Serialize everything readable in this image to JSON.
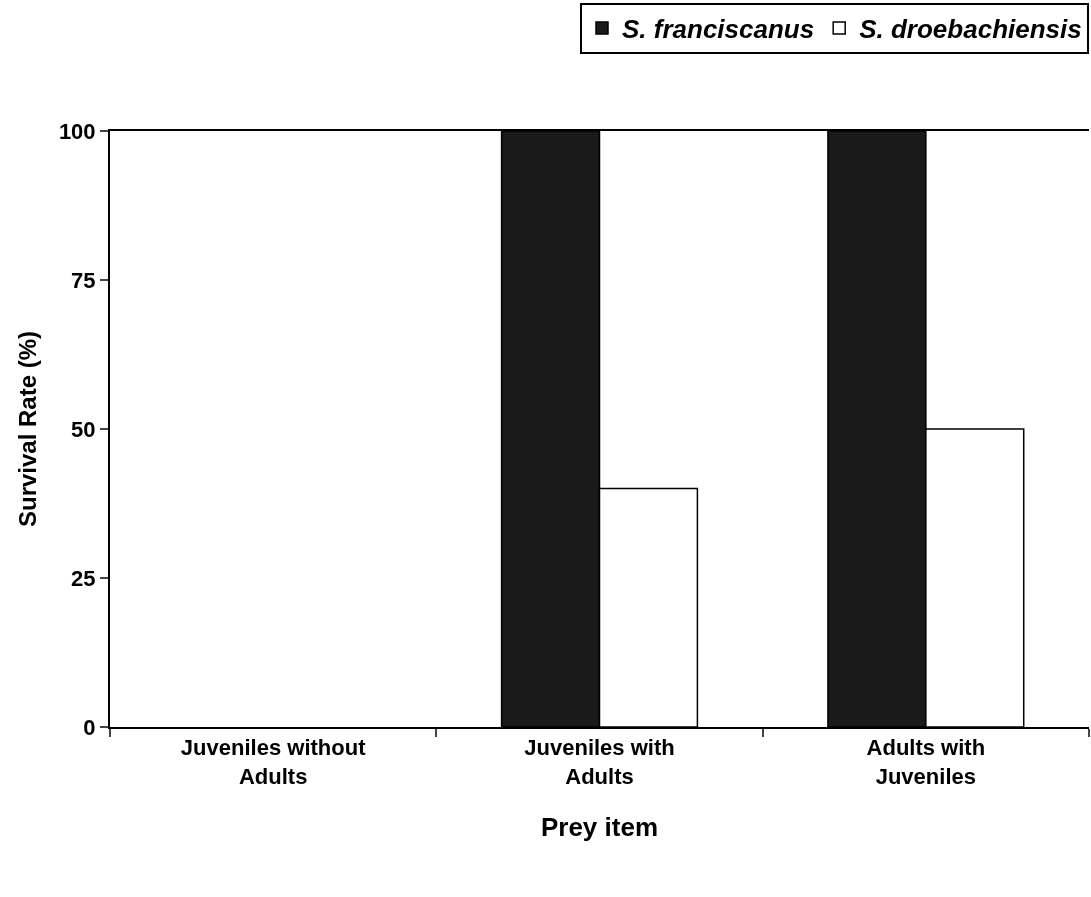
{
  "chart_data": {
    "type": "bar",
    "xlabel": "Prey item",
    "ylabel": "Survival Rate (%)",
    "categories": [
      "Juveniles without Adults",
      "Juveniles with Adults",
      "Adults with Juveniles"
    ],
    "series": [
      {
        "name": "S. franciscanus",
        "color": "#1a1a1a",
        "values": [
          null,
          100,
          100
        ]
      },
      {
        "name": "S. droebachiensis",
        "color": "#ffffff",
        "values": [
          null,
          40,
          50
        ]
      }
    ],
    "ylim": [
      0,
      100
    ],
    "yticks": [
      0,
      25,
      50,
      75,
      100
    ],
    "legend": "top right"
  }
}
